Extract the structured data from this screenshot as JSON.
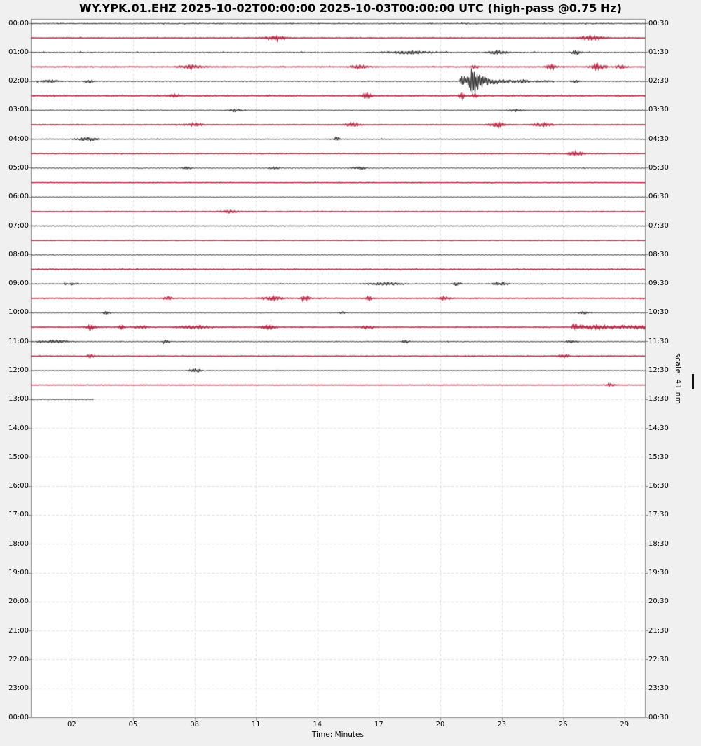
{
  "chart_data": {
    "type": "line",
    "subtype": "helicorder-dayplot",
    "title": "WY.YPK.01.EHZ 2025-10-02T00:00:00 2025-10-03T00:00:00 UTC (high-pass @0.75 Hz)",
    "xlabel": "Time: Minutes",
    "scale_label": "scale: 41 nm",
    "minutes_per_line": 30,
    "x_axis_range": [
      0,
      30
    ],
    "grid": "dashed, vertical every 3 minutes, horizontal every hour",
    "x_tick_minutes": [
      2,
      5,
      8,
      11,
      14,
      17,
      20,
      23,
      26,
      29
    ],
    "x_tick_labels": [
      "02",
      "05",
      "08",
      "11",
      "14",
      "17",
      "20",
      "23",
      "26",
      "29"
    ],
    "left_axis_labels": [
      "00:00",
      "01:00",
      "02:00",
      "03:00",
      "04:00",
      "05:00",
      "06:00",
      "07:00",
      "08:00",
      "09:00",
      "10:00",
      "11:00",
      "12:00",
      "13:00",
      "14:00",
      "15:00",
      "16:00",
      "17:00",
      "18:00",
      "19:00",
      "20:00",
      "21:00",
      "22:00",
      "23:00",
      "00:00"
    ],
    "right_axis_labels": [
      "00:30",
      "01:30",
      "02:30",
      "03:30",
      "04:30",
      "05:30",
      "06:30",
      "07:30",
      "08:30",
      "09:30",
      "10:30",
      "11:30",
      "12:30",
      "13:30",
      "14:30",
      "15:30",
      "16:30",
      "17:30",
      "18:30",
      "19:30",
      "20:30",
      "21:30",
      "22:30",
      "23:30",
      "00:30"
    ],
    "colors": {
      "black_trace": "#1c1c1c",
      "red_trace": "#b02c48",
      "grid": "#d9d9d9",
      "border": "#8a8a8a",
      "figure_bg": "#f0f0f0",
      "plot_bg": "#ffffff"
    },
    "traces": [
      {
        "row": 0,
        "time": "00:00",
        "color": "black",
        "noise": 1.6,
        "coverage": 1,
        "events": []
      },
      {
        "row": 1,
        "time": "00:30",
        "color": "red",
        "noise": 1.0,
        "coverage": 1,
        "events": [
          {
            "m": 12,
            "amp": 2.0,
            "dur": 1.2
          },
          {
            "m": 27.3,
            "amp": 1.8,
            "dur": 1.4
          }
        ]
      },
      {
        "row": 2,
        "time": "01:00",
        "color": "black",
        "noise": 1.5,
        "coverage": 1,
        "events": [
          {
            "m": 18.5,
            "amp": 1.8,
            "dur": 2.5
          },
          {
            "m": 22.8,
            "amp": 2.2,
            "dur": 1.0
          },
          {
            "m": 26.6,
            "amp": 2.5,
            "dur": 0.5
          }
        ]
      },
      {
        "row": 3,
        "time": "01:30",
        "color": "red",
        "noise": 1.0,
        "coverage": 1,
        "events": [
          {
            "m": 7.8,
            "amp": 1.8,
            "dur": 1.2
          },
          {
            "m": 16,
            "amp": 2.0,
            "dur": 0.8
          },
          {
            "m": 21.7,
            "amp": 1.6,
            "dur": 0.4
          },
          {
            "m": 25.4,
            "amp": 2.6,
            "dur": 0.6
          },
          {
            "m": 27.7,
            "amp": 3.0,
            "dur": 0.7
          },
          {
            "m": 28.8,
            "amp": 2.0,
            "dur": 0.5
          }
        ]
      },
      {
        "row": 4,
        "time": "02:00",
        "color": "black",
        "noise": 1.3,
        "coverage": 1,
        "events": [
          {
            "m": 0.9,
            "amp": 2.0,
            "dur": 1.0
          },
          {
            "m": 2.8,
            "amp": 2.4,
            "dur": 0.4
          },
          {
            "m": 20.93,
            "amp": 25,
            "dur": 4.6,
            "shape": "quake",
            "env": [
              [
                0,
                0.3
              ],
              [
                0.03,
                0.36
              ],
              [
                0.07,
                0.18
              ],
              [
                0.1,
                0.3
              ],
              [
                0.13,
                1.0
              ],
              [
                0.17,
                0.72
              ],
              [
                0.2,
                0.45
              ],
              [
                0.25,
                0.3
              ],
              [
                0.3,
                0.18
              ],
              [
                0.4,
                0.1
              ],
              [
                0.55,
                0.06
              ],
              [
                0.75,
                0.04
              ],
              [
                1,
                0.03
              ]
            ]
          },
          {
            "m": 24.1,
            "amp": 1.6,
            "dur": 0.4
          },
          {
            "m": 26.6,
            "amp": 1.8,
            "dur": 0.5
          }
        ]
      },
      {
        "row": 5,
        "time": "02:30",
        "color": "red",
        "noise": 1.2,
        "coverage": 1,
        "events": [
          {
            "m": 7,
            "amp": 1.6,
            "dur": 0.6
          },
          {
            "m": 16.4,
            "amp": 2.6,
            "dur": 0.5
          },
          {
            "m": 21.05,
            "amp": 3.2,
            "dur": 0.3
          },
          {
            "m": 21.65,
            "amp": 2.2,
            "dur": 0.3
          }
        ]
      },
      {
        "row": 6,
        "time": "03:00",
        "color": "black",
        "noise": 1.2,
        "coverage": 1,
        "events": [
          {
            "m": 10,
            "amp": 2.0,
            "dur": 0.8
          },
          {
            "m": 23.7,
            "amp": 1.8,
            "dur": 0.8
          }
        ]
      },
      {
        "row": 7,
        "time": "03:30",
        "color": "red",
        "noise": 1.0,
        "coverage": 1,
        "events": [
          {
            "m": 8,
            "amp": 1.6,
            "dur": 0.8
          },
          {
            "m": 15.7,
            "amp": 2.2,
            "dur": 0.6
          },
          {
            "m": 22.8,
            "amp": 2.6,
            "dur": 0.7
          },
          {
            "m": 25,
            "amp": 1.8,
            "dur": 0.9
          }
        ]
      },
      {
        "row": 8,
        "time": "04:00",
        "color": "black",
        "noise": 1.3,
        "coverage": 1,
        "events": [
          {
            "m": 2.7,
            "amp": 2.6,
            "dur": 1.1
          },
          {
            "m": 14.9,
            "amp": 2.6,
            "dur": 0.4
          }
        ]
      },
      {
        "row": 9,
        "time": "04:30",
        "color": "red",
        "noise": 0.9,
        "coverage": 1,
        "events": [
          {
            "m": 26.6,
            "amp": 2.2,
            "dur": 0.7
          }
        ]
      },
      {
        "row": 10,
        "time": "05:00",
        "color": "black",
        "noise": 1.1,
        "coverage": 1,
        "events": [
          {
            "m": 7.6,
            "amp": 1.8,
            "dur": 0.5
          },
          {
            "m": 11.9,
            "amp": 1.8,
            "dur": 0.5
          },
          {
            "m": 16,
            "amp": 2.0,
            "dur": 0.6
          }
        ]
      },
      {
        "row": 11,
        "time": "05:30",
        "color": "red",
        "noise": 0.85,
        "coverage": 1,
        "events": []
      },
      {
        "row": 12,
        "time": "06:00",
        "color": "black",
        "noise": 1.0,
        "coverage": 1,
        "events": []
      },
      {
        "row": 13,
        "time": "06:30",
        "color": "red",
        "noise": 0.95,
        "coverage": 1,
        "events": [
          {
            "m": 9.7,
            "amp": 1.5,
            "dur": 0.8
          }
        ]
      },
      {
        "row": 14,
        "time": "07:00",
        "color": "black",
        "noise": 1.1,
        "coverage": 1,
        "events": []
      },
      {
        "row": 15,
        "time": "07:30",
        "color": "red",
        "noise": 0.85,
        "coverage": 1,
        "events": []
      },
      {
        "row": 16,
        "time": "08:00",
        "color": "black",
        "noise": 1.2,
        "coverage": 1,
        "events": []
      },
      {
        "row": 17,
        "time": "08:30",
        "color": "red",
        "noise": 1.15,
        "coverage": 1,
        "events": []
      },
      {
        "row": 18,
        "time": "09:00",
        "color": "black",
        "noise": 1.2,
        "coverage": 1,
        "events": [
          {
            "m": 2,
            "amp": 1.7,
            "dur": 0.6
          },
          {
            "m": 17.3,
            "amp": 2.0,
            "dur": 1.8
          },
          {
            "m": 20.8,
            "amp": 2.8,
            "dur": 0.4
          },
          {
            "m": 22.9,
            "amp": 2.4,
            "dur": 0.8
          }
        ]
      },
      {
        "row": 19,
        "time": "09:30",
        "color": "red",
        "noise": 1.0,
        "coverage": 1,
        "events": [
          {
            "m": 6.7,
            "amp": 1.6,
            "dur": 0.4
          },
          {
            "m": 11.8,
            "amp": 2.0,
            "dur": 1.0
          },
          {
            "m": 13.4,
            "amp": 2.0,
            "dur": 0.5
          },
          {
            "m": 16.5,
            "amp": 2.4,
            "dur": 0.3
          },
          {
            "m": 20.2,
            "amp": 1.8,
            "dur": 0.6
          }
        ]
      },
      {
        "row": 20,
        "time": "10:00",
        "color": "black",
        "noise": 0.95,
        "coverage": 1,
        "events": [
          {
            "m": 3.7,
            "amp": 1.8,
            "dur": 0.4
          },
          {
            "m": 15.2,
            "amp": 2.2,
            "dur": 0.3
          },
          {
            "m": 27,
            "amp": 1.5,
            "dur": 0.8
          }
        ]
      },
      {
        "row": 21,
        "time": "10:30",
        "color": "red",
        "noise": 0.95,
        "coverage": 1,
        "events": [
          {
            "m": 2.9,
            "amp": 2.4,
            "dur": 0.5
          },
          {
            "m": 4.4,
            "amp": 2.8,
            "dur": 0.3
          },
          {
            "m": 5.4,
            "amp": 1.8,
            "dur": 0.6
          },
          {
            "m": 8,
            "amp": 1.6,
            "dur": 1.6
          },
          {
            "m": 11.6,
            "amp": 1.8,
            "dur": 0.7
          },
          {
            "m": 16.4,
            "amp": 1.8,
            "dur": 0.5
          },
          {
            "m": 26.4,
            "amp": 3.2,
            "dur": 3.8,
            "shape": "burst",
            "env": [
              [
                0,
                1.0
              ],
              [
                0.1,
                0.55
              ],
              [
                0.3,
                0.6
              ],
              [
                0.6,
                0.5
              ],
              [
                1,
                0.45
              ]
            ]
          }
        ]
      },
      {
        "row": 22,
        "time": "11:00",
        "color": "black",
        "noise": 1.25,
        "coverage": 1,
        "events": [
          {
            "m": 1,
            "amp": 1.8,
            "dur": 1.6
          },
          {
            "m": 6.6,
            "amp": 1.8,
            "dur": 0.4
          },
          {
            "m": 18.3,
            "amp": 1.8,
            "dur": 0.4
          },
          {
            "m": 26.4,
            "amp": 2.0,
            "dur": 0.5
          }
        ]
      },
      {
        "row": 23,
        "time": "11:30",
        "color": "red",
        "noise": 0.9,
        "coverage": 1,
        "events": [
          {
            "m": 2.9,
            "amp": 2.2,
            "dur": 0.4
          },
          {
            "m": 26,
            "amp": 1.5,
            "dur": 0.5
          }
        ]
      },
      {
        "row": 24,
        "time": "12:00",
        "color": "black",
        "noise": 0.7,
        "coverage": 1,
        "events": [
          {
            "m": 8,
            "amp": 2.6,
            "dur": 0.7
          }
        ]
      },
      {
        "row": 25,
        "time": "12:30",
        "color": "red",
        "noise": 0.75,
        "coverage": 1,
        "events": [
          {
            "m": 28.3,
            "amp": 1.8,
            "dur": 0.4
          }
        ]
      },
      {
        "row": 26,
        "time": "13:00",
        "color": "black",
        "noise": 0.9,
        "coverage": 0.102,
        "events": []
      }
    ]
  }
}
